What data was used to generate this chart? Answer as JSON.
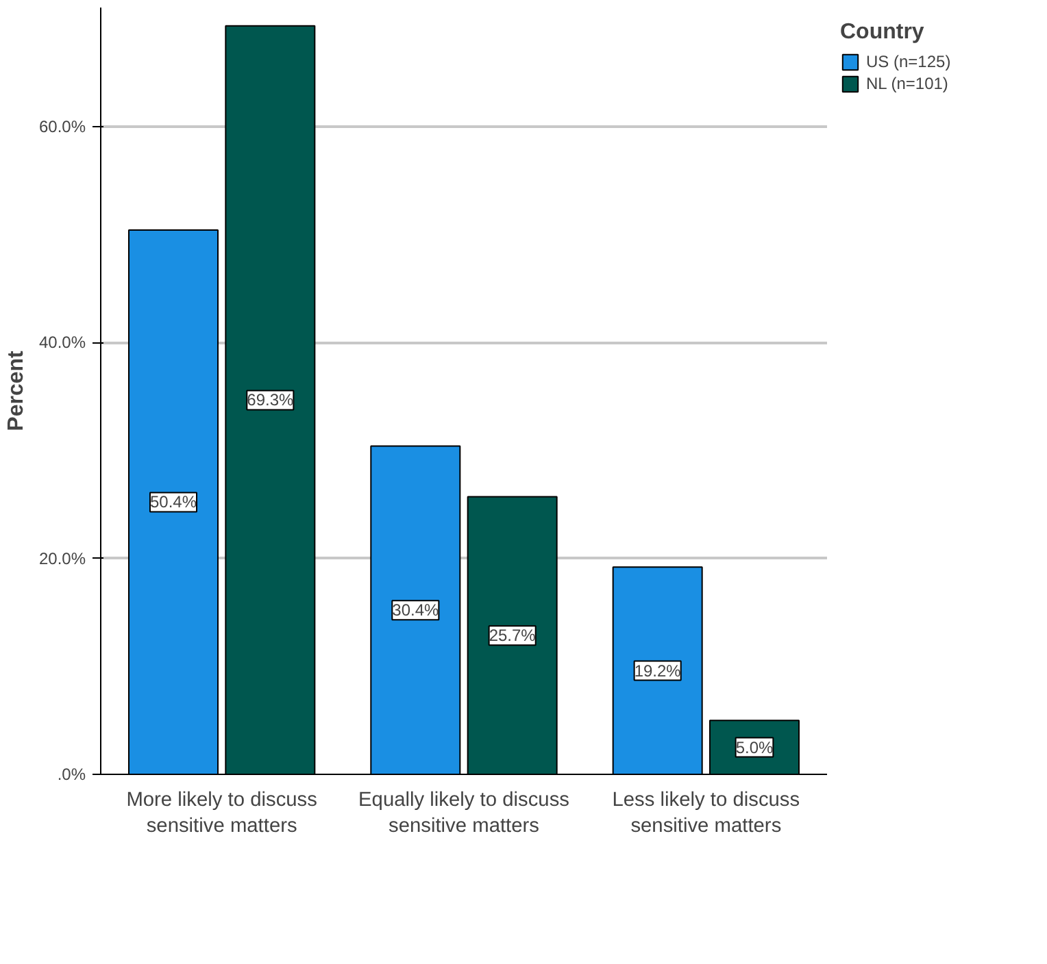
{
  "chart_data": {
    "type": "bar",
    "ylabel": "Percent",
    "legend_title": "Country",
    "legend": "top right",
    "grid": "y",
    "categories": [
      "More likely to discuss sensitive matters",
      "Equally likely to discuss sensitive matters",
      "Less likely to discuss sensitive matters"
    ],
    "ylim": [
      0,
      71
    ],
    "yticks": [
      {
        "value": 0,
        "label": ".0%"
      },
      {
        "value": 20,
        "label": "20.0%"
      },
      {
        "value": 40,
        "label": "40.0%"
      },
      {
        "value": 60,
        "label": "60.0%"
      }
    ],
    "series": [
      {
        "name": "US (n=125)",
        "color": "#1a8fe3",
        "values": [
          50.4,
          30.4,
          19.2
        ],
        "value_labels": [
          "50.4%",
          "30.4%",
          "19.2%"
        ]
      },
      {
        "name": "NL (n=101)",
        "color": "#00574f",
        "values": [
          69.3,
          25.7,
          5.0
        ],
        "value_labels": [
          "69.3%",
          "25.7%",
          "5.0%"
        ]
      }
    ]
  }
}
